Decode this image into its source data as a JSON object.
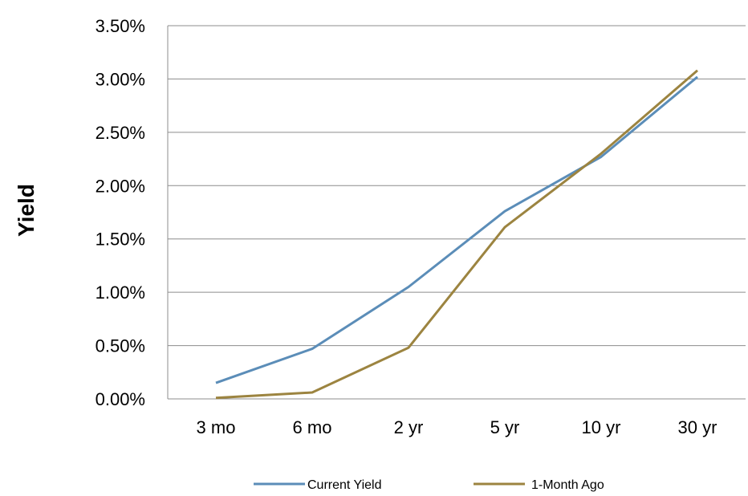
{
  "chart_data": {
    "type": "line",
    "ylabel": "Yield",
    "xlabel": "",
    "title": "",
    "categories": [
      "3 mo",
      "6 mo",
      "2 yr",
      "5 yr",
      "10 yr",
      "30 yr"
    ],
    "y_ticks": [
      "0.00%",
      "0.50%",
      "1.00%",
      "1.50%",
      "2.00%",
      "2.50%",
      "3.00%",
      "3.50%"
    ],
    "ylim": [
      0,
      3.5
    ],
    "y_unit": "%",
    "grid": "horizontal",
    "legend_position": "bottom",
    "series": [
      {
        "name": "Current Yield",
        "color": "#5b8db8",
        "values": [
          0.15,
          0.47,
          1.05,
          1.76,
          2.27,
          3.02
        ]
      },
      {
        "name": "1-Month Ago",
        "color": "#9c8440",
        "values": [
          0.01,
          0.06,
          0.48,
          1.61,
          2.3,
          3.08
        ]
      }
    ]
  }
}
